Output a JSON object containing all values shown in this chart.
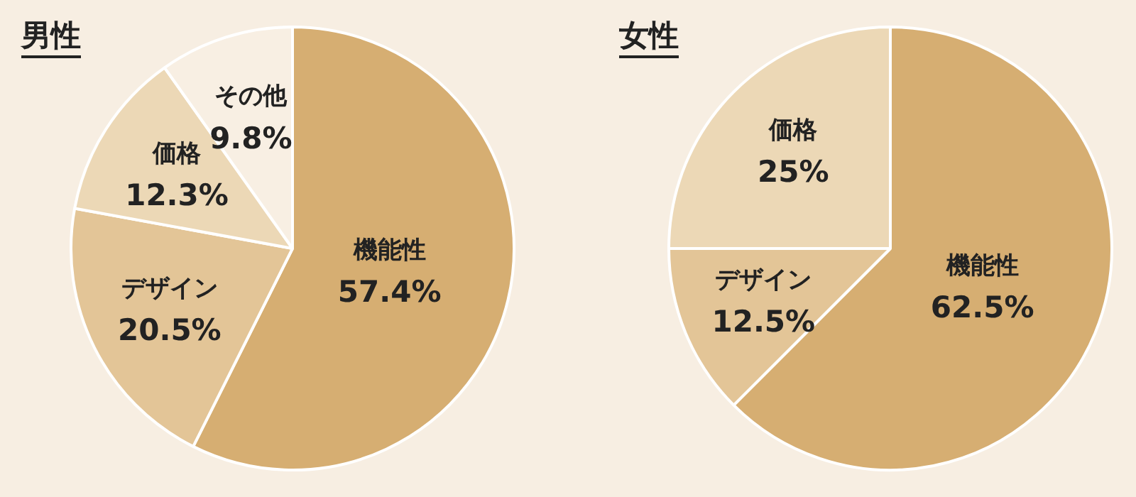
{
  "chart_data": [
    {
      "type": "pie",
      "title": "男性",
      "categories": [
        "機能性",
        "デザイン",
        "価格",
        "その他"
      ],
      "values": [
        57.4,
        20.5,
        12.3,
        9.8
      ],
      "value_labels": [
        "57.4%",
        "20.5%",
        "12.3%",
        "9.8%"
      ],
      "colors": [
        "#d6ae72",
        "#e3c597",
        "#ecd8b6",
        "#f8efe3"
      ],
      "legend": false
    },
    {
      "type": "pie",
      "title": "女性",
      "categories": [
        "機能性",
        "デザイン",
        "価格"
      ],
      "values": [
        62.5,
        12.5,
        25
      ],
      "value_labels": [
        "62.5%",
        "12.5%",
        "25%"
      ],
      "colors": [
        "#d6ae72",
        "#e3c597",
        "#ecd8b6"
      ],
      "legend": false
    }
  ]
}
